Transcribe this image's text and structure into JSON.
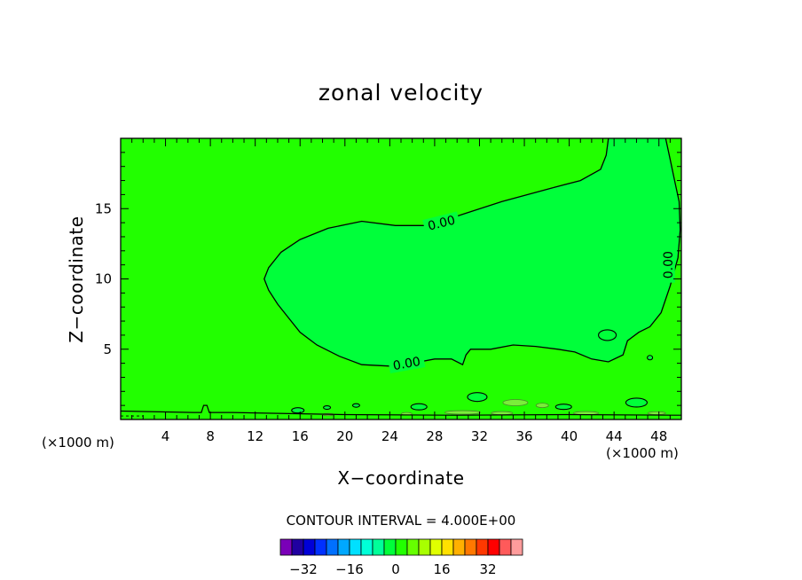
{
  "chart_data": {
    "type": "heatmap",
    "title": "zonal velocity",
    "xlabel": "X−coordinate",
    "ylabel": "Z−coordinate",
    "x_unit": "(×1000 m)",
    "y_unit": "(×1000 m)",
    "xlim": [
      0,
      50
    ],
    "ylim": [
      0,
      20
    ],
    "x_ticks": [
      4,
      8,
      12,
      16,
      20,
      24,
      28,
      32,
      36,
      40,
      44,
      48
    ],
    "y_ticks": [
      5,
      10,
      15
    ],
    "contour_labels": [
      {
        "text": "0.00",
        "x": 28.6,
        "y": 14.0,
        "angle": -14
      },
      {
        "text": "0.00",
        "x": 25.5,
        "y": 4.0,
        "angle": -10
      },
      {
        "text": "0.00",
        "x": 48.8,
        "y": 11.0,
        "angle": -90
      }
    ],
    "regions": [
      {
        "range": "0 to 4",
        "color": "#22ff00",
        "where": "background"
      },
      {
        "range": "-4 to 0",
        "color": "#00ff3a",
        "where": "central tongue bounded by 0.00 contour"
      },
      {
        "range": "4 to 8",
        "color": "#7aee3a",
        "where": "thin patches near surface"
      }
    ],
    "contour_interval": "CONTOUR INTERVAL = 4.000E+00",
    "colorbar": {
      "colors": [
        "#7a00b8",
        "#2000a0",
        "#0000d8",
        "#0030ff",
        "#0070ff",
        "#00a8ff",
        "#00e0ff",
        "#00ffd8",
        "#00ff99",
        "#00ff3a",
        "#22ff00",
        "#66ff00",
        "#a8ff00",
        "#e0ff00",
        "#ffe000",
        "#ffb000",
        "#ff7800",
        "#ff3800",
        "#ff0000",
        "#ff5a5a",
        "#ff9c9c"
      ],
      "tick_labels": [
        "−32",
        "−16",
        "0",
        "16",
        "32"
      ],
      "tick_values": [
        -32,
        -16,
        0,
        16,
        32
      ]
    }
  }
}
